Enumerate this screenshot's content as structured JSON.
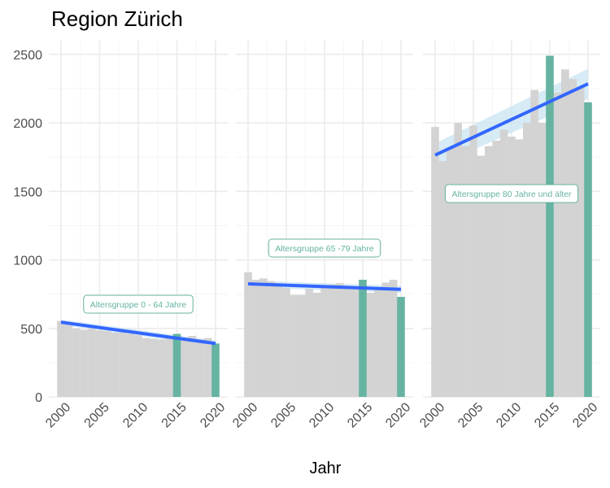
{
  "chart_data": {
    "type": "bar",
    "title": "Region Zürich",
    "xlabel": "Jahr",
    "ylabel": "",
    "ylim": [
      0,
      2600
    ],
    "yticks": [
      0,
      500,
      1000,
      1500,
      2000,
      2500
    ],
    "xticks": [
      2000,
      2005,
      2010,
      2015,
      2020
    ],
    "grid": true,
    "highlight_years": [
      2015,
      2020
    ],
    "colors": {
      "bar": "#d3d3d3",
      "highlight": "#66b3a2",
      "trend_line": "#3366ff",
      "confidence_band": "#c8e4f2",
      "grid_major": "#ebebeb",
      "grid_minor": "#f5f5f5",
      "label_text": "#66b3a2"
    },
    "panels": [
      {
        "label": "Altersgruppe 0 - 64 Jahre",
        "years": [
          2000,
          2001,
          2002,
          2003,
          2004,
          2005,
          2006,
          2007,
          2008,
          2009,
          2010,
          2011,
          2012,
          2013,
          2014,
          2015,
          2016,
          2017,
          2018,
          2019,
          2020
        ],
        "values": [
          555,
          530,
          500,
          490,
          500,
          485,
          480,
          470,
          475,
          460,
          450,
          430,
          425,
          420,
          430,
          460,
          410,
          445,
          420,
          430,
          390
        ],
        "trend": [
          545,
          390
        ],
        "band_halfwidth": [
          20,
          22
        ]
      },
      {
        "label": "Altersgruppe 65 -79 Jahre",
        "years": [
          2000,
          2001,
          2002,
          2003,
          2004,
          2005,
          2006,
          2007,
          2008,
          2009,
          2010,
          2011,
          2012,
          2013,
          2014,
          2015,
          2016,
          2017,
          2018,
          2019,
          2020
        ],
        "values": [
          910,
          855,
          865,
          845,
          830,
          795,
          745,
          745,
          790,
          760,
          800,
          820,
          830,
          810,
          800,
          855,
          760,
          800,
          835,
          855,
          730
        ],
        "trend": [
          825,
          785
        ],
        "band_halfwidth": [
          25,
          25
        ]
      },
      {
        "label": "Altersgruppe 80 Jahre und älter",
        "years": [
          2000,
          2001,
          2002,
          2003,
          2004,
          2005,
          2006,
          2007,
          2008,
          2009,
          2010,
          2011,
          2012,
          2013,
          2014,
          2015,
          2016,
          2017,
          2018,
          2019,
          2020
        ],
        "values": [
          1970,
          1720,
          1820,
          2000,
          1830,
          1980,
          1760,
          1830,
          1870,
          1950,
          1900,
          1880,
          2000,
          2240,
          2000,
          2490,
          2220,
          2390,
          2320,
          2260,
          2150
        ],
        "trend": [
          1765,
          2285
        ],
        "band_halfwidth": [
          85,
          110
        ]
      }
    ]
  }
}
